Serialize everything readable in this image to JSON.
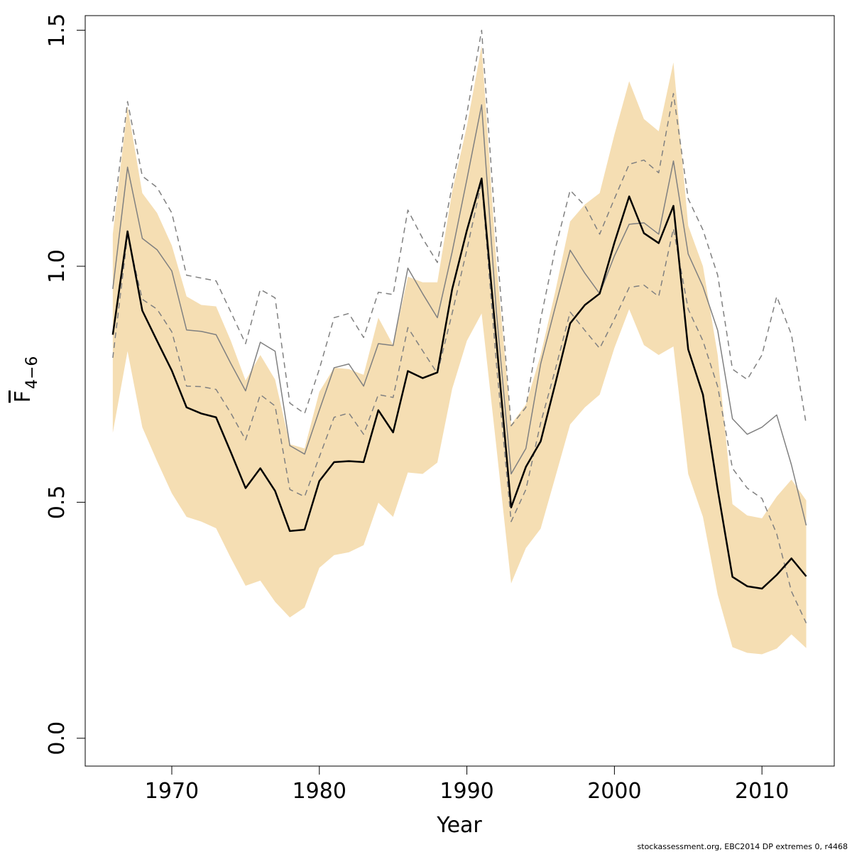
{
  "chart_data": {
    "type": "line",
    "x_label": "Year",
    "y_label": {
      "main": "F",
      "subscript": "4−6"
    },
    "footer": "stockassessment.org, EBC2014 DP extremes 0, r4468",
    "x": [
      1966,
      1967,
      1968,
      1969,
      1970,
      1971,
      1972,
      1973,
      1974,
      1975,
      1976,
      1977,
      1978,
      1979,
      1980,
      1981,
      1982,
      1983,
      1984,
      1985,
      1986,
      1987,
      1988,
      1989,
      1990,
      1991,
      1992,
      1993,
      1994,
      1995,
      1996,
      1997,
      1998,
      1999,
      2000,
      2001,
      2002,
      2003,
      2004,
      2005,
      2006,
      2007,
      2008,
      2009,
      2010,
      2011,
      2012,
      2013
    ],
    "band": {
      "color": "#f5deb3",
      "upper": [
        1.068,
        1.339,
        1.155,
        1.113,
        1.044,
        0.936,
        0.918,
        0.915,
        0.842,
        0.758,
        0.812,
        0.76,
        0.623,
        0.614,
        0.734,
        0.785,
        0.782,
        0.77,
        0.891,
        0.833,
        0.978,
        0.966,
        0.966,
        1.158,
        1.297,
        1.467,
        1.008,
        0.665,
        0.707,
        0.812,
        0.948,
        1.095,
        1.131,
        1.155,
        1.279,
        1.392,
        1.312,
        1.286,
        1.432,
        1.086,
        1.0,
        0.812,
        0.496,
        0.472,
        0.466,
        0.512,
        0.548,
        0.504
      ],
      "lower": [
        0.647,
        0.82,
        0.659,
        0.587,
        0.519,
        0.469,
        0.459,
        0.445,
        0.382,
        0.323,
        0.334,
        0.289,
        0.256,
        0.277,
        0.361,
        0.388,
        0.394,
        0.409,
        0.499,
        0.469,
        0.563,
        0.56,
        0.584,
        0.74,
        0.842,
        0.9,
        0.617,
        0.328,
        0.403,
        0.444,
        0.554,
        0.665,
        0.701,
        0.728,
        0.827,
        0.909,
        0.833,
        0.812,
        0.83,
        0.56,
        0.469,
        0.304,
        0.193,
        0.181,
        0.178,
        0.19,
        0.22,
        0.191
      ]
    },
    "series": [
      {
        "color": "#808080",
        "dashed": true,
        "width": 1.5,
        "values": [
          1.095,
          1.349,
          1.191,
          1.167,
          1.113,
          0.981,
          0.975,
          0.969,
          0.903,
          0.836,
          0.951,
          0.933,
          0.71,
          0.688,
          0.782,
          0.891,
          0.9,
          0.849,
          0.945,
          0.94,
          1.119,
          1.059,
          1.008,
          1.17,
          1.324,
          1.5,
          1.053,
          0.662,
          0.701,
          0.888,
          1.038,
          1.161,
          1.128,
          1.068,
          1.143,
          1.216,
          1.225,
          1.198,
          1.366,
          1.143,
          1.077,
          0.981,
          0.782,
          0.76,
          0.812,
          0.936,
          0.855,
          0.665
        ]
      },
      {
        "color": "#808080",
        "dashed": true,
        "width": 1.5,
        "values": [
          0.806,
          1.065,
          0.93,
          0.909,
          0.861,
          0.746,
          0.745,
          0.739,
          0.689,
          0.632,
          0.728,
          0.704,
          0.527,
          0.512,
          0.596,
          0.68,
          0.689,
          0.644,
          0.728,
          0.722,
          0.87,
          0.821,
          0.773,
          0.9,
          1.035,
          1.179,
          0.794,
          0.459,
          0.527,
          0.668,
          0.782,
          0.903,
          0.864,
          0.826,
          0.888,
          0.955,
          0.96,
          0.936,
          1.08,
          0.909,
          0.842,
          0.745,
          0.572,
          0.53,
          0.508,
          0.433,
          0.311,
          0.244
        ]
      },
      {
        "color": "#808080",
        "dashed": false,
        "width": 1.5,
        "values": [
          0.952,
          1.21,
          1.059,
          1.035,
          0.99,
          0.865,
          0.862,
          0.855,
          0.794,
          0.736,
          0.839,
          0.82,
          0.62,
          0.602,
          0.695,
          0.785,
          0.793,
          0.746,
          0.836,
          0.832,
          0.996,
          0.942,
          0.891,
          1.03,
          1.184,
          1.342,
          0.903,
          0.56,
          0.614,
          0.793,
          0.915,
          1.034,
          0.985,
          0.942,
          1.022,
          1.089,
          1.092,
          1.068,
          1.223,
          1.026,
          0.957,
          0.864,
          0.677,
          0.644,
          0.659,
          0.685,
          0.579,
          0.451
        ]
      },
      {
        "color": "#000000",
        "dashed": false,
        "width": 2.5,
        "values": [
          0.855,
          1.074,
          0.906,
          0.842,
          0.779,
          0.701,
          0.688,
          0.68,
          0.606,
          0.53,
          0.572,
          0.524,
          0.439,
          0.442,
          0.545,
          0.585,
          0.587,
          0.585,
          0.695,
          0.648,
          0.778,
          0.763,
          0.775,
          0.951,
          1.076,
          1.186,
          0.842,
          0.489,
          0.575,
          0.629,
          0.752,
          0.879,
          0.918,
          0.942,
          1.05,
          1.148,
          1.07,
          1.049,
          1.128,
          0.824,
          0.728,
          0.527,
          0.342,
          0.322,
          0.317,
          0.346,
          0.381,
          0.343
        ]
      }
    ],
    "xlim": [
      1964.13,
      2014.9
    ],
    "ylim": [
      -0.059,
      1.531
    ],
    "xticks": [
      1970,
      1980,
      1990,
      2000,
      2010
    ],
    "yticks": [
      {
        "value": 0,
        "label": "0.0"
      },
      {
        "value": 0.5,
        "label": "0.5"
      },
      {
        "value": 1,
        "label": "1.0"
      },
      {
        "value": 1.5,
        "label": "1.5"
      }
    ]
  }
}
